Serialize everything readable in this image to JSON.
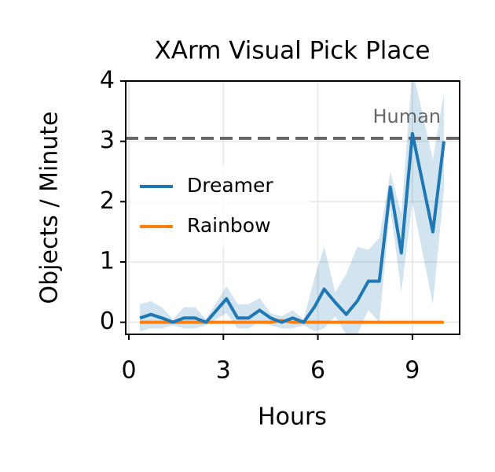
{
  "chart_data": {
    "type": "line",
    "title": "XArm Visual Pick Place",
    "xlabel": "Hours",
    "ylabel": "Objects / Minute",
    "x": [
      0.35,
      0.7,
      1.05,
      1.4,
      1.75,
      2.1,
      2.45,
      3.1,
      3.45,
      3.8,
      4.15,
      4.5,
      4.85,
      5.2,
      5.55,
      5.9,
      6.2,
      6.55,
      6.9,
      7.25,
      7.6,
      7.95,
      8.3,
      8.65,
      9.0,
      9.65,
      10.0
    ],
    "series": [
      {
        "name": "Dreamer",
        "color": "#1f77b4",
        "values": [
          0.07,
          0.13,
          0.07,
          0.0,
          0.07,
          0.07,
          0.0,
          0.39,
          0.07,
          0.07,
          0.2,
          0.07,
          0.0,
          0.07,
          0.0,
          0.26,
          0.55,
          0.33,
          0.13,
          0.35,
          0.68,
          0.68,
          2.24,
          1.15,
          3.13,
          1.5,
          3.0
        ],
        "lower": [
          -0.15,
          -0.1,
          -0.1,
          -0.05,
          -0.1,
          -0.1,
          -0.05,
          0.15,
          -0.1,
          -0.1,
          0.0,
          -0.05,
          -0.1,
          -0.1,
          -0.05,
          -0.15,
          -0.1,
          0.1,
          -0.2,
          -0.2,
          0.2,
          0.0,
          1.9,
          0.5,
          2.0,
          0.3,
          2.2
        ],
        "upper": [
          0.3,
          0.35,
          0.25,
          0.05,
          0.25,
          0.25,
          0.05,
          0.6,
          0.3,
          0.3,
          0.4,
          0.15,
          0.1,
          0.2,
          0.05,
          0.75,
          1.25,
          0.5,
          0.8,
          1.25,
          1.2,
          1.4,
          2.5,
          1.8,
          4.2,
          2.7,
          3.8
        ]
      },
      {
        "name": "Rainbow",
        "color": "#ff7f0e",
        "values": [
          0.0,
          0.0,
          0.0,
          0.0,
          0.0,
          0.0,
          0.0,
          0.0,
          0.0,
          0.0,
          0.0,
          0.0,
          0.03,
          0.0,
          0.0,
          0.0,
          0.0,
          0.0,
          0.0,
          0.0,
          0.0,
          0.0,
          0.0,
          0.0,
          0.0,
          0.0,
          0.0
        ]
      }
    ],
    "reference": {
      "label": "Human",
      "value": 3.05,
      "color": "#666666"
    },
    "xlim": [
      -0.1,
      10.5
    ],
    "ylim": [
      -0.2,
      4
    ],
    "xticks": [
      0,
      3,
      6,
      9
    ],
    "yticks": [
      0,
      1,
      2,
      3,
      4
    ],
    "grid": true,
    "legend": "center left"
  }
}
